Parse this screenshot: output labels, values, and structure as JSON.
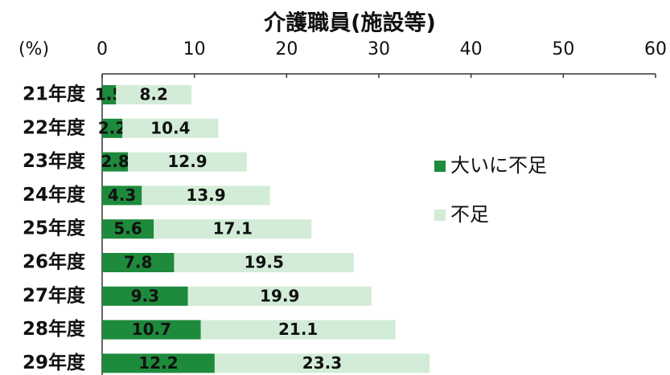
{
  "chart_data": {
    "type": "stacked_barh",
    "title": "介護職員(施設等)",
    "unit_label": "(%)",
    "categories": [
      "21年度",
      "22年度",
      "23年度",
      "24年度",
      "25年度",
      "26年度",
      "27年度",
      "28年度",
      "29年度"
    ],
    "series": [
      {
        "name": "大いに不足",
        "color": "#1e8a3c",
        "values": [
          1.5,
          2.2,
          2.8,
          4.3,
          5.6,
          7.8,
          9.3,
          10.7,
          12.2
        ]
      },
      {
        "name": "不足",
        "color": "#d3ecd7",
        "values": [
          8.2,
          10.4,
          12.9,
          13.9,
          17.1,
          19.5,
          19.9,
          21.1,
          23.3
        ]
      }
    ],
    "xlim": [
      0,
      60
    ],
    "xticks": [
      0,
      10,
      20,
      30,
      40,
      50,
      60
    ]
  }
}
